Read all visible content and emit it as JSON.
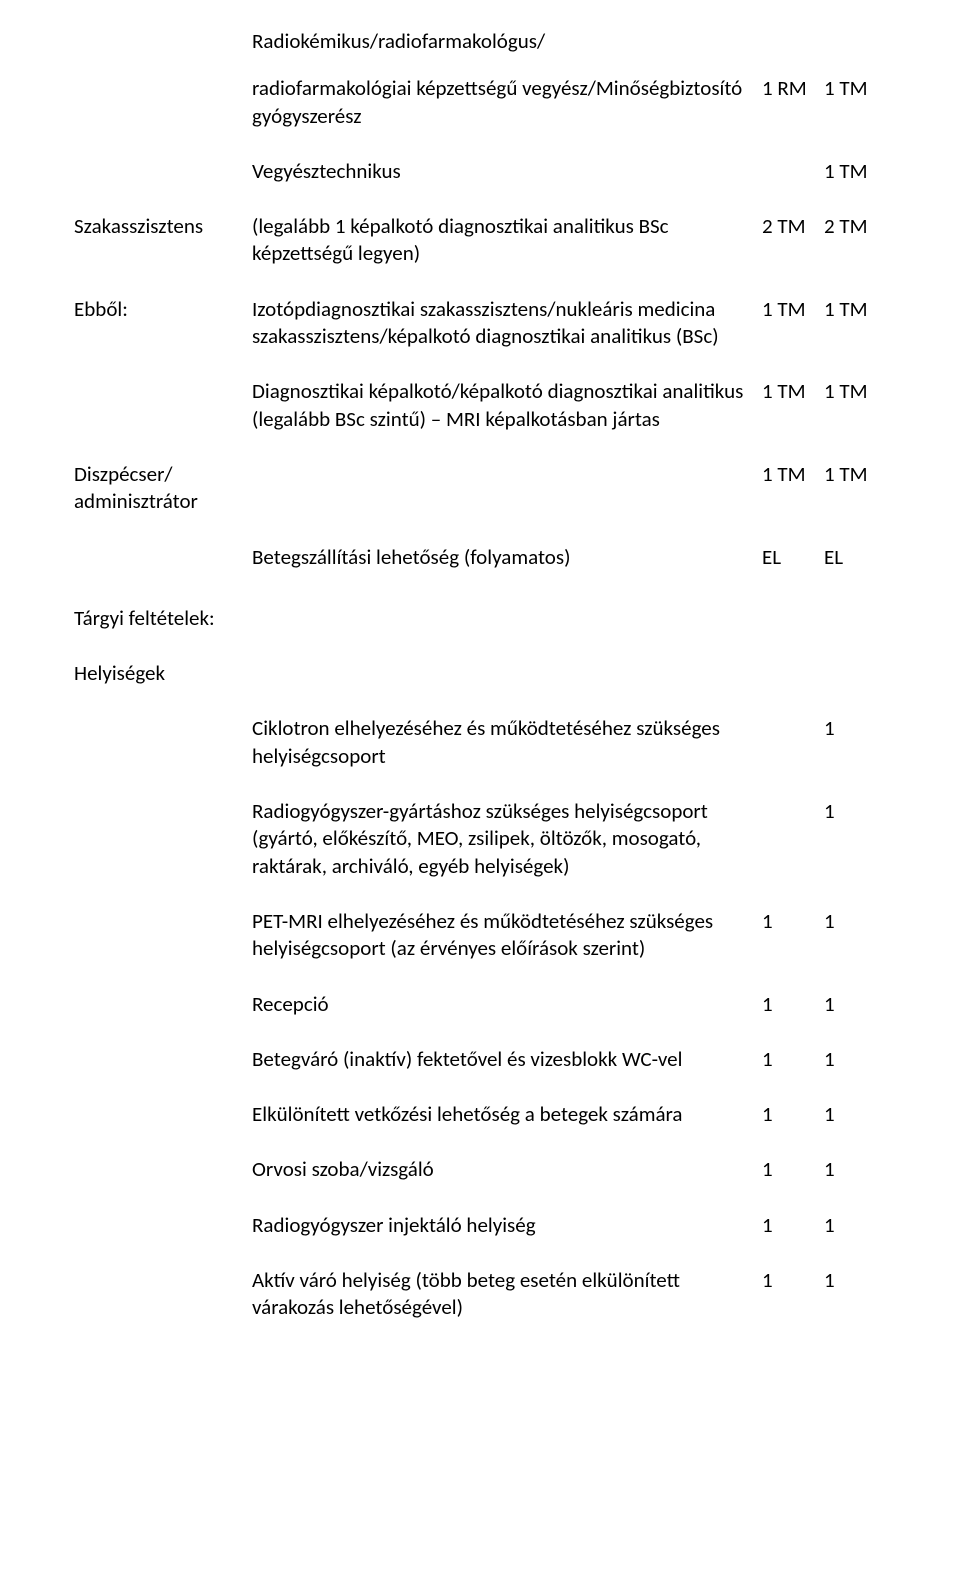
{
  "r1": {
    "desc": "Radiokémikus/radiofarmakológus/"
  },
  "r2": {
    "desc": "radiofarmakológiai képzettségű vegyész/Minőségbiztosító gyógyszerész",
    "v1": "1 RM",
    "v2": "1 TM"
  },
  "r3": {
    "desc": "Vegyésztechnikus",
    "v2": "1 TM"
  },
  "r4": {
    "label": "Szakasszisztens",
    "desc": "(legalább 1 képalkotó diagnosztikai analitikus BSc képzettségű legyen)",
    "v1": "2 TM",
    "v2": "2 TM"
  },
  "r5": {
    "label": "Ebből:",
    "desc": "Izotópdiagnosztikai szakasszisztens/nukleáris medicina szakasszisztens/képalkotó diagnosztikai analitikus (BSc)",
    "v1": "1 TM",
    "v2": "1 TM"
  },
  "r6": {
    "desc": "Diagnosztikai képalkotó/képalkotó diagnosztikai analitikus (legalább BSc szintű) – MRI képalkotásban jártas",
    "v1": "1 TM",
    "v2": "1 TM"
  },
  "r7": {
    "label": "Diszpécser/ adminisztrátor",
    "v1": "1 TM",
    "v2": "1 TM"
  },
  "r8": {
    "desc": "Betegszállítási lehetőség (folyamatos)",
    "v1": "EL",
    "v2": "EL"
  },
  "r9": {
    "label": "Tárgyi feltételek:"
  },
  "r10": {
    "label": "Helyiségek"
  },
  "r11": {
    "desc": "Ciklotron elhelyezéséhez és működtetéséhez szükséges helyiségcsoport",
    "v2": "1"
  },
  "r12": {
    "desc": "Radiogyógyszer-gyártáshoz szükséges helyiségcsoport (gyártó, előkészítő, MEO, zsilipek, öltözők, mosogató, raktárak, archiváló, egyéb helyiségek)",
    "v2": "1"
  },
  "r13": {
    "desc": "PET-MRI elhelyezéséhez és működtetéséhez szükséges helyiségcsoport (az érvényes előírások szerint)",
    "v1": "1",
    "v2": "1"
  },
  "r14": {
    "desc": "Recepció",
    "v1": "1",
    "v2": "1"
  },
  "r15": {
    "desc": "Betegváró (inaktív) fektetővel és vizesblokk WC-vel",
    "v1": "1",
    "v2": "1"
  },
  "r16": {
    "desc": "Elkülönített vetkőzési lehetőség a betegek számára",
    "v1": "1",
    "v2": "1"
  },
  "r17": {
    "desc": "Orvosi szoba/vizsgáló",
    "v1": "1",
    "v2": "1"
  },
  "r18": {
    "desc": "Radiogyógyszer injektáló helyiség",
    "v1": "1",
    "v2": "1"
  },
  "r19": {
    "desc": "Aktív váró helyiség (több beteg esetén elkülönített várakozás lehetőségével)",
    "v1": "1",
    "v2": "1"
  }
}
